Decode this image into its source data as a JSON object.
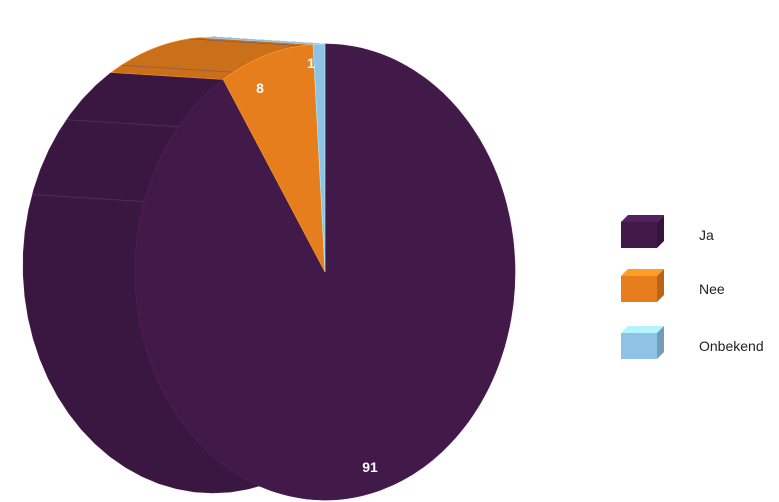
{
  "chart_data": {
    "type": "pie",
    "categories": [
      "Ja",
      "Nee",
      "Onbekend"
    ],
    "values": [
      91,
      8,
      1
    ],
    "data_labels": [
      "91",
      "8",
      "1"
    ],
    "colors": [
      "#421a4a",
      "#e67e1e",
      "#8fc3e6"
    ],
    "style": "3d-tilted",
    "legend": {
      "position": "right",
      "items": [
        {
          "label": "Ja",
          "color": "#421a4a"
        },
        {
          "label": "Nee",
          "color": "#e67e1e"
        },
        {
          "label": "Onbekend",
          "color": "#8fc3e6"
        }
      ]
    }
  }
}
